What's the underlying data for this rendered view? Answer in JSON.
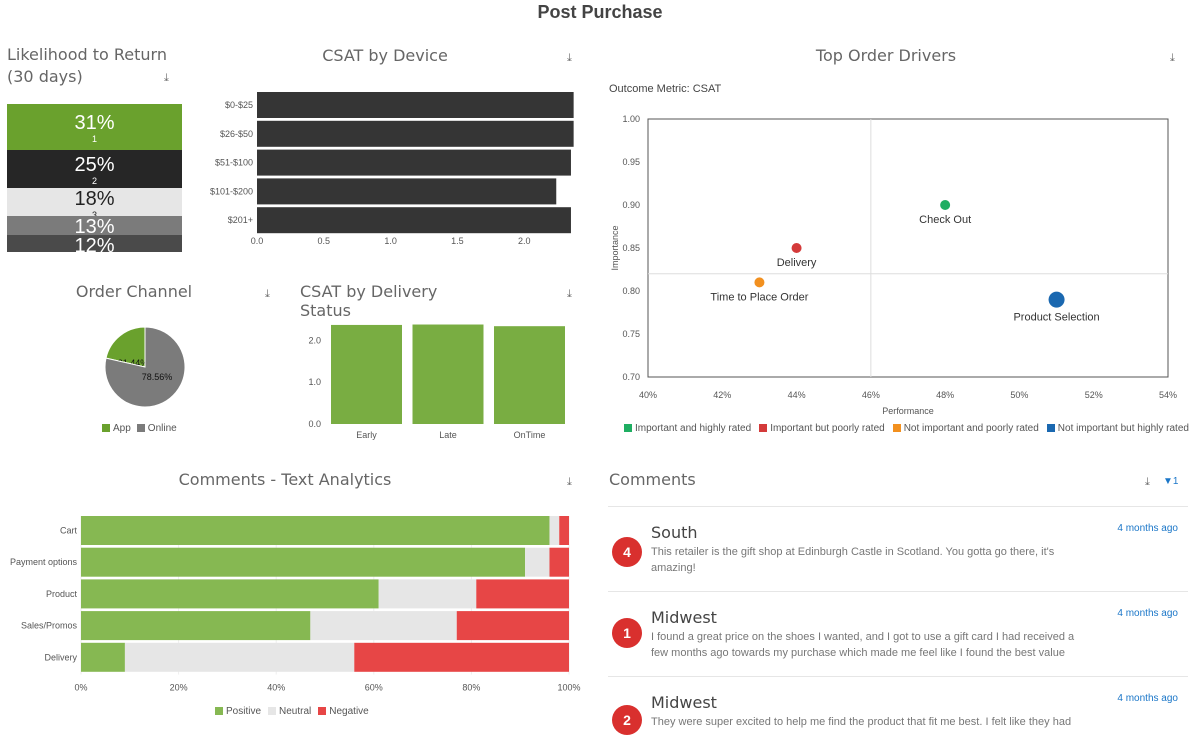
{
  "page": {
    "title": "Post Purchase"
  },
  "likelihood": {
    "title": "Likelihood to Return (30 days)",
    "segments": [
      {
        "pct": "31%",
        "rank": "1",
        "bg": "#6aa12d",
        "fg": "#ffffff"
      },
      {
        "pct": "25%",
        "rank": "2",
        "bg": "#262626",
        "fg": "#ffffff"
      },
      {
        "pct": "18%",
        "rank": "3",
        "bg": "#e6e6e6",
        "fg": "#222222"
      },
      {
        "pct": "13%",
        "rank": "4",
        "bg": "#7b7b7b",
        "fg": "#ffffff"
      },
      {
        "pct": "12%",
        "rank": "5",
        "bg": "#4a4a4a",
        "fg": "#ffffff"
      }
    ]
  },
  "csat_device": {
    "title": "CSAT by Device",
    "chart_data": {
      "type": "bar",
      "orientation": "horizontal",
      "categories": [
        "$0-$25",
        "$26-$50",
        "$51-$100",
        "$101-$200",
        "$201+"
      ],
      "values": [
        2.37,
        2.37,
        2.35,
        2.24,
        2.35
      ],
      "xlim": [
        0,
        2.35
      ],
      "xticks": [
        "0.0",
        "0.5",
        "1.0",
        "1.5",
        "2.0"
      ],
      "color": "#353535"
    }
  },
  "top_drivers": {
    "title": "Top Order Drivers",
    "subtitle": "Outcome Metric: CSAT",
    "chart_data": {
      "type": "scatter",
      "xlabel": "Performance",
      "ylabel": "Importance",
      "xlim": [
        0.4,
        0.54
      ],
      "ylim": [
        0.7,
        1.0
      ],
      "xticks": [
        "40%",
        "42%",
        "44%",
        "46%",
        "48%",
        "50%",
        "52%",
        "54%"
      ],
      "yticks": [
        "1.00",
        "0.95",
        "0.90",
        "0.85",
        "0.80",
        "0.75",
        "0.70"
      ],
      "points": [
        {
          "label": "Check Out",
          "x": 0.48,
          "y": 0.9,
          "color": "#1fae62",
          "r": 5
        },
        {
          "label": "Delivery",
          "x": 0.44,
          "y": 0.85,
          "color": "#d43a3a",
          "r": 5
        },
        {
          "label": "Time to Place Order",
          "x": 0.43,
          "y": 0.81,
          "color": "#f2901f",
          "r": 5
        },
        {
          "label": "Product Selection",
          "x": 0.51,
          "y": 0.79,
          "color": "#1a68b0",
          "r": 8
        }
      ],
      "divider_x": 0.46,
      "divider_y": 0.82,
      "legend": [
        {
          "label": "Important and highly rated",
          "color": "#1fae62"
        },
        {
          "label": "Important but poorly rated",
          "color": "#d43a3a"
        },
        {
          "label": "Not important and poorly rated",
          "color": "#f2901f"
        },
        {
          "label": "Not important but highly rated",
          "color": "#1a68b0"
        }
      ]
    }
  },
  "order_channel": {
    "title": "Order Channel",
    "chart_data": {
      "type": "pie",
      "slices": [
        {
          "name": "App",
          "value": 21.44,
          "label": "21.44%",
          "color": "#6aa12d"
        },
        {
          "name": "Online",
          "value": 78.56,
          "label": "78.56%",
          "color": "#7b7b7b"
        }
      ]
    }
  },
  "csat_delivery": {
    "title": "CSAT by Delivery Status",
    "chart_data": {
      "type": "bar",
      "categories": [
        "Early",
        "Late",
        "OnTime"
      ],
      "values": [
        2.37,
        2.38,
        2.34
      ],
      "ylim": [
        0,
        2.6
      ],
      "yticks": [
        "0.0",
        "1.0",
        "2.0"
      ],
      "color": "#79ad42"
    }
  },
  "text_analytics": {
    "title": "Comments - Text Analytics",
    "chart_data": {
      "type": "bar",
      "orientation": "horizontal",
      "stacked": true,
      "categories": [
        "Cart",
        "Payment options",
        "Product",
        "Sales/Promos",
        "Delivery"
      ],
      "series": [
        {
          "name": "Positive",
          "color": "#86b852",
          "values": [
            96,
            91,
            61,
            47,
            9
          ]
        },
        {
          "name": "Neutral",
          "color": "#e6e6e6",
          "values": [
            2,
            5,
            20,
            30,
            47
          ]
        },
        {
          "name": "Negative",
          "color": "#e74646",
          "values": [
            2,
            4,
            19,
            23,
            44
          ]
        }
      ],
      "xticks": [
        "0%",
        "20%",
        "40%",
        "60%",
        "80%",
        "100%"
      ]
    }
  },
  "comments": {
    "title": "Comments",
    "filter_count": "1",
    "items": [
      {
        "score": "4",
        "region": "South",
        "time": "4 months ago",
        "text": "This retailer is the gift shop at Edinburgh Castle in Scotland. You gotta go there, it's amazing!"
      },
      {
        "score": "1",
        "region": "Midwest",
        "time": "4 months ago",
        "text": "I found a great price on the shoes I wanted, and I got to use a gift card I had received a few months ago towards my purchase which made me feel like I found the best value"
      },
      {
        "score": "2",
        "region": "Midwest",
        "time": "4 months ago",
        "text": "They were super excited to help me find the product that fit me best. I felt like they had"
      }
    ]
  }
}
